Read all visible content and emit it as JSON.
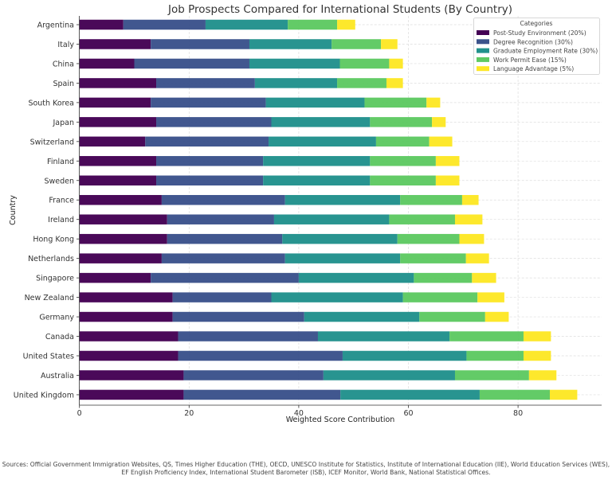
{
  "chart_data": {
    "type": "bar",
    "orientation": "horizontal",
    "stacked": true,
    "title": "Job Prospects Compared for International Students (By Country)",
    "xlabel": "Weighted Score Contribution",
    "ylabel": "Country",
    "xlim": [
      0,
      95.2
    ],
    "xticks": [
      0,
      20,
      40,
      60,
      80
    ],
    "grid": true,
    "legend": {
      "title": "Categories",
      "placement": "top-right"
    },
    "categories": [
      "Argentina",
      "Italy",
      "China",
      "Spain",
      "South Korea",
      "Japan",
      "Switzerland",
      "Finland",
      "Sweden",
      "France",
      "Ireland",
      "Hong Kong",
      "Netherlands",
      "Singapore",
      "New Zealand",
      "Germany",
      "Canada",
      "United States",
      "Australia",
      "United Kingdom"
    ],
    "series": [
      {
        "name": "Post-Study Environment (20%)",
        "color": "#440154",
        "values": [
          8,
          13,
          10,
          14,
          13,
          14,
          12,
          14,
          14,
          15,
          16,
          16,
          15,
          13,
          17,
          17,
          18,
          18,
          19,
          19
        ]
      },
      {
        "name": "Degree Recognition (30%)",
        "color": "#3b528b",
        "values": [
          15,
          18,
          21,
          18,
          21,
          21,
          22.5,
          19.5,
          19.5,
          22.5,
          19.5,
          21,
          22.5,
          27,
          18,
          24,
          25.5,
          30,
          25.5,
          28.6
        ]
      },
      {
        "name": "Graduate Employment Rate (30%)",
        "color": "#21918c",
        "values": [
          15,
          15,
          16.5,
          15,
          18,
          18,
          19.6,
          19.5,
          19.5,
          21,
          21,
          21,
          21,
          21,
          24,
          21,
          24,
          22.6,
          24,
          25.4
        ]
      },
      {
        "name": "Work Permit Ease (15%)",
        "color": "#5ec962",
        "values": [
          9,
          9,
          9,
          9,
          11.3,
          11.3,
          9.7,
          12,
          12,
          11.3,
          12,
          11.3,
          12,
          10.6,
          13.6,
          12,
          13.5,
          10.4,
          13.5,
          12.8
        ]
      },
      {
        "name": "Language Advantage (5%)",
        "color": "#fde725",
        "values": [
          3.3,
          3,
          2.5,
          3,
          2.5,
          2.5,
          4.2,
          4.3,
          4.3,
          3,
          5,
          4.5,
          4.2,
          4.4,
          4.9,
          4.3,
          5,
          5,
          5,
          5
        ]
      }
    ]
  },
  "footer": {
    "line1": "Sources: Official Government Immigration Websites, QS, Times Higher Education (THE), OECD, UNESCO Institute for Statistics, Institute of International Education (IIE), World Education Services (WES),",
    "line2": "EF English Proficiency Index, International Student Barometer (ISB), ICEF Monitor, World Bank, National Statistical Offices."
  }
}
